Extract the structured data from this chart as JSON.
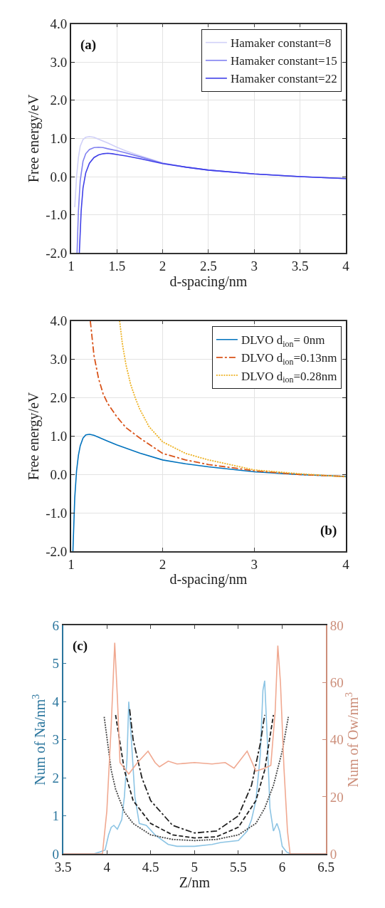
{
  "chart_data": [
    {
      "type": "line",
      "xlabel": "d-spacing/nm",
      "ylabel": "Free energy/eV",
      "annotations": [
        "(a)"
      ],
      "xlim": [
        1,
        4
      ],
      "ylim": [
        -2,
        4
      ],
      "xticks": [
        1,
        1.5,
        2,
        2.5,
        3,
        3.5,
        4
      ],
      "yticks": [
        {
          "value": -2,
          "label": "-2.0"
        },
        {
          "value": -1,
          "label": "-1.0"
        },
        {
          "value": 0,
          "label": "0.0"
        },
        {
          "value": 1,
          "label": "1.0"
        },
        {
          "value": 2,
          "label": "2.0"
        },
        {
          "value": 3,
          "label": "3.0"
        },
        {
          "value": 4,
          "label": "4.0"
        }
      ],
      "grid": true,
      "legend": "top right",
      "line_style": "solid",
      "marker": "none",
      "series": [
        {
          "name": "Hamaker constant=8",
          "color": "#d0d0f8",
          "x": [
            1.04,
            1.06,
            1.08,
            1.1,
            1.13,
            1.16,
            1.2,
            1.25,
            1.3,
            1.4,
            1.5,
            1.6,
            1.75,
            2,
            2.25,
            2.5,
            3,
            3.5,
            4
          ],
          "values": [
            -0.8,
            0.0,
            0.5,
            0.8,
            0.97,
            1.03,
            1.05,
            1.03,
            0.98,
            0.88,
            0.77,
            0.67,
            0.55,
            0.36,
            0.25,
            0.17,
            0.07,
            0.0,
            -0.05
          ]
        },
        {
          "name": "Hamaker constant=15",
          "color": "#8080f0",
          "x": [
            1.065,
            1.08,
            1.1,
            1.13,
            1.16,
            1.2,
            1.25,
            1.3,
            1.35,
            1.4,
            1.5,
            1.6,
            1.75,
            2,
            2.25,
            2.5,
            3,
            3.5,
            4
          ],
          "values": [
            -2.0,
            -0.9,
            -0.1,
            0.4,
            0.6,
            0.71,
            0.76,
            0.77,
            0.76,
            0.73,
            0.68,
            0.62,
            0.52,
            0.35,
            0.25,
            0.17,
            0.07,
            0.0,
            -0.05
          ]
        },
        {
          "name": "Hamaker constant=22",
          "color": "#4040e8",
          "x": [
            1.09,
            1.11,
            1.13,
            1.16,
            1.2,
            1.25,
            1.3,
            1.35,
            1.4,
            1.45,
            1.5,
            1.6,
            1.75,
            2,
            2.25,
            2.5,
            3,
            3.5,
            4
          ],
          "values": [
            -2.0,
            -0.9,
            -0.3,
            0.1,
            0.35,
            0.5,
            0.57,
            0.6,
            0.61,
            0.6,
            0.58,
            0.54,
            0.47,
            0.34,
            0.25,
            0.17,
            0.07,
            0.0,
            -0.05
          ]
        }
      ]
    },
    {
      "type": "line",
      "xlabel": "d-spacing/nm",
      "ylabel": "Free energy/eV",
      "annotations": [
        "(b)"
      ],
      "xlim": [
        1,
        4
      ],
      "ylim": [
        -2,
        4
      ],
      "xticks": [
        1,
        2,
        3,
        4
      ],
      "yticks": [
        {
          "value": -2,
          "label": "-2.0"
        },
        {
          "value": -1,
          "label": "-1.0"
        },
        {
          "value": 0,
          "label": "0.0"
        },
        {
          "value": 1,
          "label": "1.0"
        },
        {
          "value": 2,
          "label": "2.0"
        },
        {
          "value": 3,
          "label": "3.0"
        },
        {
          "value": 4,
          "label": "4.0"
        }
      ],
      "grid": true,
      "legend": "top right",
      "marker": "none",
      "series": [
        {
          "name": "DLVO d$_{ion}$= 0nm",
          "color": "#0072bd",
          "line_style": "solid",
          "x": [
            1.02,
            1.04,
            1.06,
            1.08,
            1.1,
            1.13,
            1.16,
            1.2,
            1.25,
            1.3,
            1.4,
            1.5,
            1.75,
            2,
            2.25,
            2.5,
            3,
            3.5,
            4
          ],
          "values": [
            -2.0,
            -0.6,
            0.1,
            0.5,
            0.75,
            0.95,
            1.03,
            1.05,
            1.02,
            0.97,
            0.87,
            0.77,
            0.56,
            0.38,
            0.28,
            0.2,
            0.07,
            0.0,
            -0.05
          ]
        },
        {
          "name": "DLVO d$_{ion}$=0.13nm",
          "color": "#d95319",
          "line_style": "dashdot",
          "x": [
            1.21,
            1.25,
            1.3,
            1.35,
            1.4,
            1.5,
            1.6,
            1.75,
            2,
            2.25,
            2.5,
            3,
            3.5,
            4
          ],
          "values": [
            4.0,
            3.1,
            2.5,
            2.1,
            1.85,
            1.5,
            1.22,
            0.95,
            0.55,
            0.38,
            0.26,
            0.1,
            0.0,
            -0.05
          ]
        },
        {
          "name": "DLVO d$_{ion}$=0.28nm",
          "color": "#edb120",
          "line_style": "dotted",
          "x": [
            1.53,
            1.56,
            1.6,
            1.65,
            1.7,
            1.75,
            1.85,
            2,
            2.25,
            2.5,
            3,
            3.5,
            4
          ],
          "values": [
            4.0,
            3.4,
            2.85,
            2.35,
            2.0,
            1.7,
            1.25,
            0.85,
            0.55,
            0.38,
            0.12,
            0.02,
            -0.06
          ]
        }
      ]
    },
    {
      "type": "line",
      "xlabel": "Z/nm",
      "ylabel": "Num of Na/nm$^{3}$",
      "y2label": "Num of Ow/nm$^{3}$",
      "annotations": [
        "(c)"
      ],
      "xlim": [
        3.5,
        6.5
      ],
      "ylim": [
        0,
        6
      ],
      "y2lim": [
        0,
        80
      ],
      "xticks": [
        3.5,
        4,
        4.5,
        5,
        5.5,
        6,
        6.5
      ],
      "yticks": [
        0,
        1,
        2,
        3,
        4,
        5,
        6
      ],
      "y2ticks": [
        0,
        20,
        40,
        60,
        80
      ],
      "legend": false,
      "marker": "none",
      "series": [
        {
          "color": "#8cc4e4",
          "line_style": "solid",
          "x": [
            3.5,
            3.85,
            3.92,
            3.98,
            4.02,
            4.05,
            4.08,
            4.12,
            4.17,
            4.2,
            4.23,
            4.25,
            4.28,
            4.32,
            4.37,
            4.45,
            4.55,
            4.7,
            4.8,
            5.0,
            5.2,
            5.3,
            5.5,
            5.6,
            5.65,
            5.7,
            5.75,
            5.78,
            5.8,
            5.83,
            5.86,
            5.9,
            5.94,
            5.97,
            6.0,
            6.05,
            6.1,
            6.5
          ],
          "values": [
            0,
            0,
            0.05,
            0.1,
            0.5,
            0.7,
            0.75,
            0.65,
            0.9,
            1.5,
            2.5,
            4.0,
            3.0,
            1.5,
            0.8,
            0.75,
            0.5,
            0.25,
            0.2,
            0.2,
            0.25,
            0.3,
            0.35,
            0.6,
            0.9,
            1.4,
            2.6,
            4.3,
            4.55,
            3.0,
            1.2,
            0.6,
            0.8,
            0.6,
            0.2,
            0.05,
            0,
            0
          ]
        },
        {
          "color": "#f0a890",
          "line_style": "solid",
          "axis": "y2",
          "x": [
            3.5,
            3.95,
            4.0,
            4.05,
            4.09,
            4.12,
            4.15,
            4.2,
            4.25,
            4.35,
            4.47,
            4.55,
            4.6,
            4.7,
            4.8,
            5.0,
            5.2,
            5.35,
            5.45,
            5.6,
            5.7,
            5.8,
            5.87,
            5.92,
            5.95,
            5.98,
            6.02,
            6.06,
            6.09,
            6.5
          ],
          "values": [
            0,
            0,
            15,
            45,
            74,
            55,
            32,
            30,
            28,
            32,
            36,
            32,
            30.5,
            32.5,
            31.5,
            32,
            31.5,
            32,
            30,
            36,
            29,
            30,
            31,
            50,
            73,
            60,
            30,
            8,
            0,
            0
          ]
        },
        {
          "color": "#404040",
          "line_style": "dotted",
          "x": [
            3.97,
            4.05,
            4.1,
            4.2,
            4.3,
            4.5,
            4.75,
            5.0,
            5.25,
            5.5,
            5.7,
            5.8,
            5.9,
            6.0,
            6.07
          ],
          "values": [
            3.6,
            2.2,
            1.7,
            1.1,
            0.8,
            0.5,
            0.38,
            0.35,
            0.38,
            0.5,
            0.8,
            1.2,
            1.8,
            2.7,
            3.6
          ]
        },
        {
          "color": "#202020",
          "line_style": "dashed",
          "x": [
            4.1,
            4.2,
            4.3,
            4.5,
            4.75,
            5.0,
            5.25,
            5.5,
            5.7,
            5.8,
            5.9
          ],
          "values": [
            3.65,
            2.2,
            1.4,
            0.8,
            0.5,
            0.42,
            0.45,
            0.7,
            1.4,
            2.2,
            3.65
          ]
        },
        {
          "color": "#202020",
          "line_style": "dashdot",
          "x": [
            4.26,
            4.3,
            4.4,
            4.5,
            4.75,
            5.0,
            5.25,
            5.5,
            5.65,
            5.75,
            5.8
          ],
          "values": [
            3.8,
            3.0,
            2.0,
            1.4,
            0.75,
            0.55,
            0.6,
            1.0,
            1.8,
            2.9,
            3.65
          ]
        }
      ]
    }
  ]
}
